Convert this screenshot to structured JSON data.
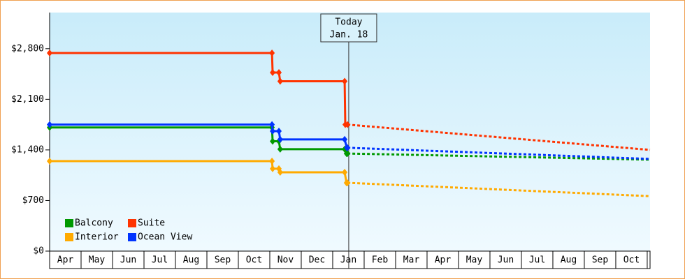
{
  "chart_data": {
    "type": "line",
    "categories": [
      "Apr",
      "May",
      "Jun",
      "Jul",
      "Aug",
      "Sep",
      "Oct",
      "Nov",
      "Dec",
      "Jan",
      "Feb",
      "Mar",
      "Apr",
      "May",
      "Jun",
      "Jul",
      "Aug",
      "Sep",
      "Oct"
    ],
    "xlim": [
      0,
      19.09
    ],
    "ylim": [
      0,
      3300
    ],
    "yticks": [
      {
        "value": 0,
        "label": "$0"
      },
      {
        "value": 700,
        "label": "$700"
      },
      {
        "value": 1400,
        "label": "$1,400"
      },
      {
        "value": 2100,
        "label": "$2,100"
      },
      {
        "value": 2800,
        "label": "$2,800"
      }
    ],
    "grid": false,
    "legend": "lower left",
    "annotation": {
      "x": 9.51,
      "lines": [
        "Today",
        "Jan. 18"
      ]
    },
    "series": [
      {
        "name": "Balcony",
        "color": "#009900",
        "x": [
          0,
          7.07,
          7.09,
          7.29,
          7.33,
          9.38,
          9.44,
          9.47
        ],
        "values": [
          1710,
          1710,
          1520,
          1520,
          1410,
          1410,
          1350,
          1350
        ],
        "forecast_x": [
          9.47,
          19.09
        ],
        "forecast_values": [
          1350,
          1265
        ]
      },
      {
        "name": "Suite",
        "color": "#ff3300",
        "x": [
          0,
          7.07,
          7.09,
          7.29,
          7.33,
          9.38,
          9.4,
          9.47
        ],
        "values": [
          2740,
          2740,
          2470,
          2470,
          2350,
          2350,
          1750,
          1750
        ],
        "forecast_x": [
          9.47,
          19.09
        ],
        "forecast_values": [
          1750,
          1400
        ]
      },
      {
        "name": "Interior",
        "color": "#ffaa00",
        "x": [
          0,
          7.07,
          7.09,
          7.29,
          7.33,
          9.38,
          9.44,
          9.47
        ],
        "values": [
          1245,
          1245,
          1140,
          1140,
          1090,
          1090,
          945,
          945
        ],
        "forecast_x": [
          9.47,
          19.09
        ],
        "forecast_values": [
          945,
          760
        ]
      },
      {
        "name": "Ocean View",
        "color": "#0033ff",
        "x": [
          0,
          7.07,
          7.09,
          7.29,
          7.33,
          9.38,
          9.45,
          9.47
        ],
        "values": [
          1750,
          1750,
          1660,
          1660,
          1545,
          1545,
          1430,
          1430
        ],
        "forecast_x": [
          9.47,
          19.09
        ],
        "forecast_values": [
          1430,
          1275
        ]
      }
    ]
  }
}
